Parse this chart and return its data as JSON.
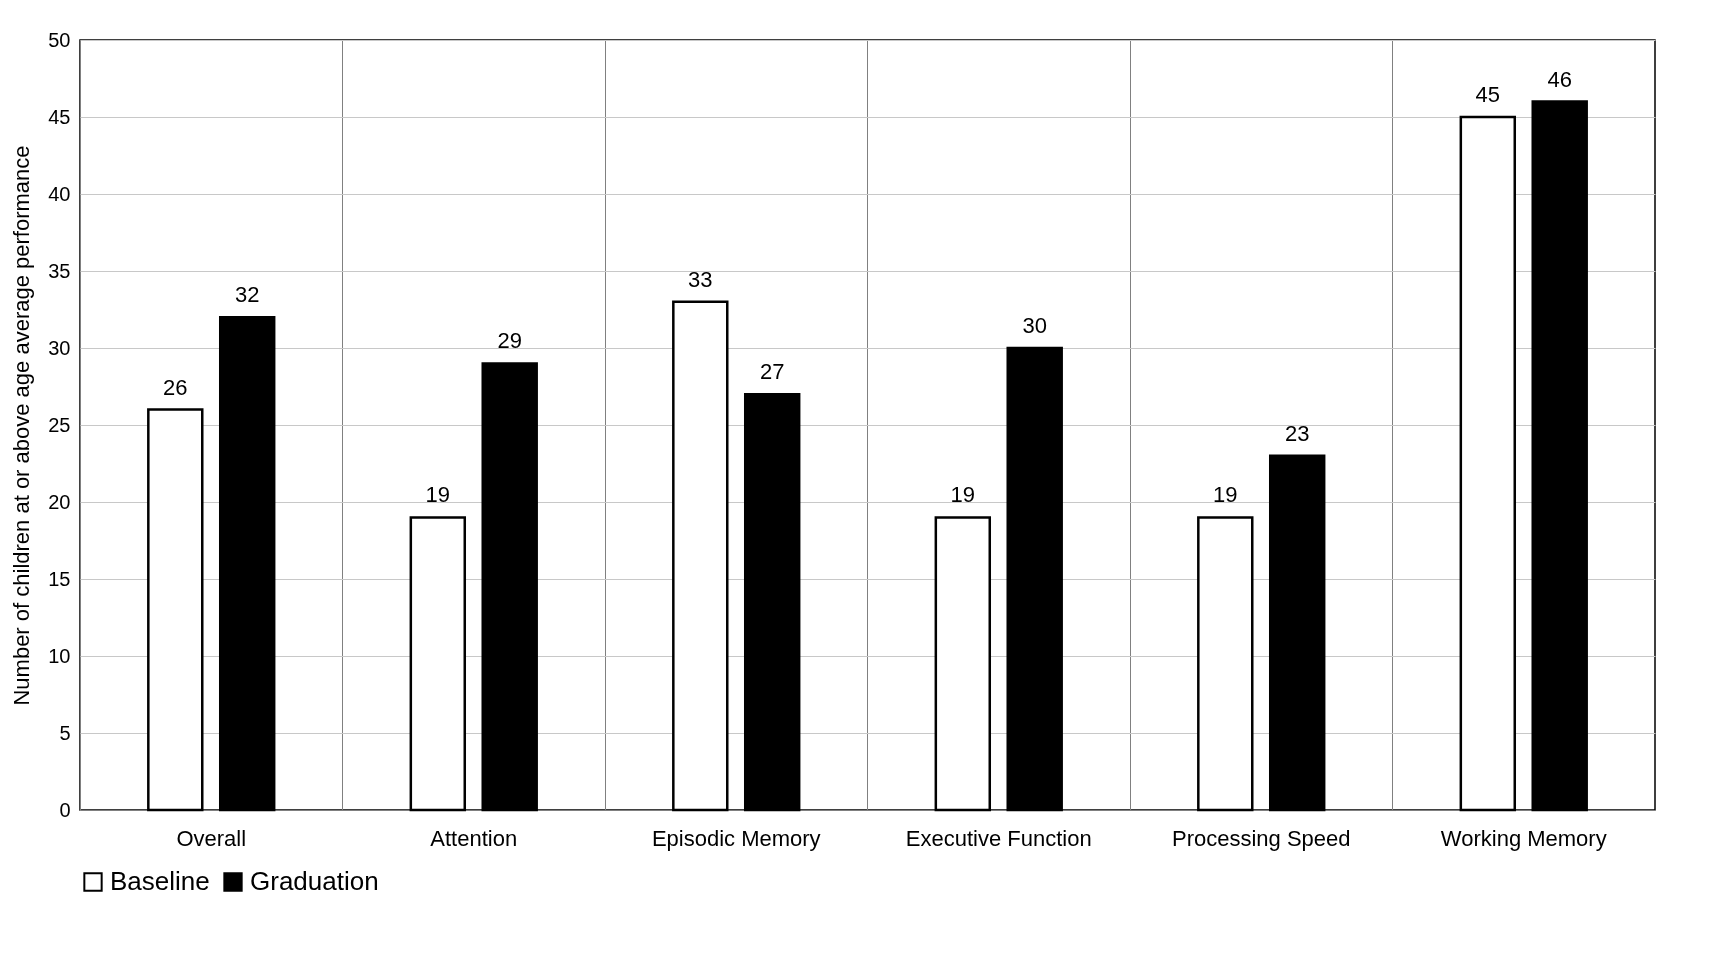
{
  "chart_data": {
    "type": "bar",
    "ylabel": "Number of children at or above age average performance",
    "categories": [
      "Overall",
      "Attention",
      "Episodic Memory",
      "Executive Function",
      "Processing Speed",
      "Working Memory"
    ],
    "series": [
      {
        "name": "Baseline",
        "color": "#ffffff",
        "values": [
          26,
          19,
          33,
          19,
          19,
          45
        ]
      },
      {
        "name": "Graduation",
        "color": "#000000",
        "values": [
          32,
          29,
          27,
          30,
          23,
          46
        ]
      }
    ],
    "ylim": [
      0,
      50
    ],
    "yticks": [
      0,
      5,
      10,
      15,
      20,
      25,
      30,
      35,
      40,
      45,
      50
    ],
    "grid": true,
    "legend": "bottom",
    "data_labels": true
  }
}
